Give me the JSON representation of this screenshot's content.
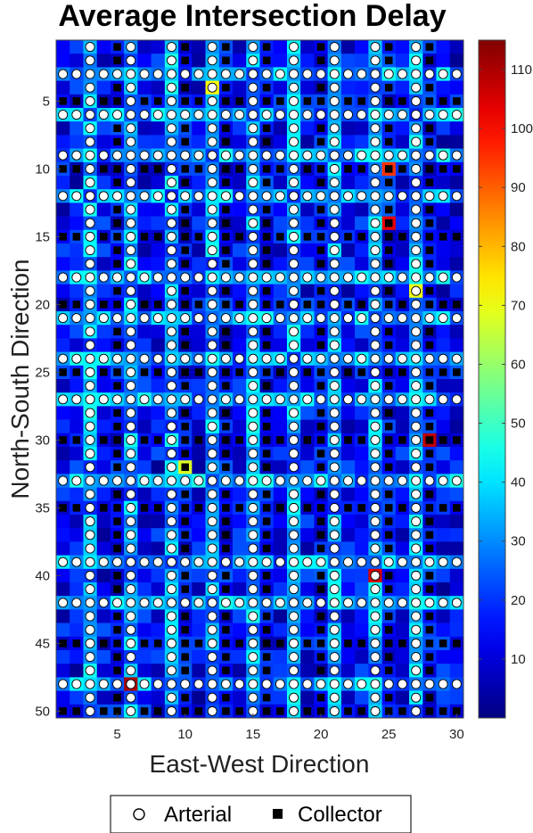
{
  "chart_data": {
    "type": "heatmap",
    "title": "Average Intersection Delay",
    "xlabel": "East-West Direction",
    "ylabel": "North-South Direction",
    "xlim": [
      1,
      30
    ],
    "ylim": [
      1,
      50
    ],
    "x_ticks": [
      5,
      10,
      15,
      20,
      25,
      30
    ],
    "y_ticks": [
      5,
      10,
      15,
      20,
      25,
      30,
      35,
      40,
      45,
      50
    ],
    "colorbar": {
      "range": [
        0,
        115
      ],
      "ticks": [
        10,
        20,
        30,
        40,
        50,
        60,
        70,
        80,
        90,
        100,
        110
      ],
      "colormap": "jet"
    },
    "grid": "30 x 50 intersections",
    "arterial_columns": [
      3,
      6,
      9,
      12,
      15,
      18,
      21,
      24,
      27
    ],
    "arterial_rows": [
      3,
      6,
      9,
      12,
      18,
      21,
      24,
      27,
      33,
      39,
      42,
      48
    ],
    "collector_columns": [
      5,
      10,
      13,
      16,
      20,
      25,
      28
    ],
    "collector_rows": [
      5,
      10,
      15,
      20,
      25,
      30,
      35,
      45,
      50
    ],
    "highlight_cells": [
      {
        "x": 6,
        "y": 48,
        "value": 110
      },
      {
        "x": 28,
        "y": 30,
        "value": 108
      },
      {
        "x": 25,
        "y": 14,
        "value": 103
      },
      {
        "x": 24,
        "y": 40,
        "value": 105
      },
      {
        "x": 25,
        "y": 10,
        "value": 95
      },
      {
        "x": 12,
        "y": 4,
        "value": 72
      },
      {
        "x": 27,
        "y": 19,
        "value": 70
      },
      {
        "x": 10,
        "y": 32,
        "value": 68
      }
    ],
    "legend": {
      "position": "bottom",
      "items": [
        {
          "label": "Arterial",
          "marker": "open-circle"
        },
        {
          "label": "Collector",
          "marker": "filled-square"
        }
      ]
    }
  }
}
